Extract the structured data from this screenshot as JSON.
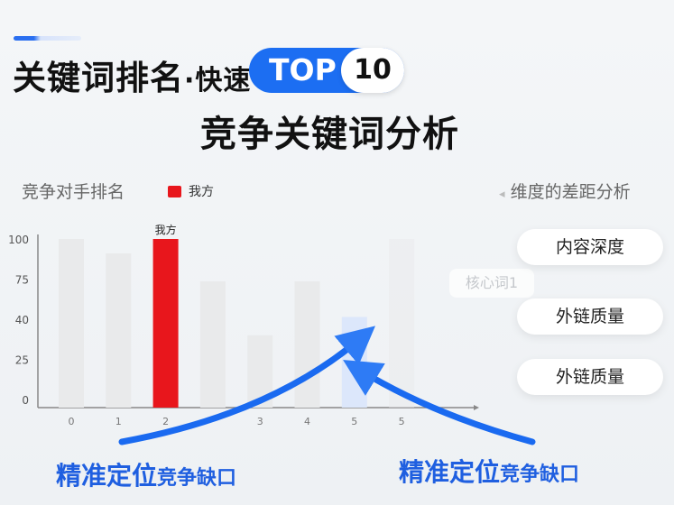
{
  "header": {
    "title_main": "关键词排名",
    "title_sep": "·",
    "title_fast": "快速",
    "badge_top": "TOP",
    "badge_num": "10",
    "subtitle": "竞争关键词分析"
  },
  "chart_data": {
    "type": "bar",
    "title": "竞争对手排名",
    "legend": [
      {
        "name": "我方",
        "color": "#e8161c"
      }
    ],
    "legend_placement": "top",
    "categories": [
      "0",
      "1",
      "2",
      "",
      "3",
      "4",
      "5",
      "5"
    ],
    "values": [
      100,
      91,
      100,
      73,
      34,
      73,
      42,
      100
    ],
    "highlight_index": 2,
    "highlight_label": "我方",
    "gap_index": 6,
    "y_ticks": [
      "100",
      "75",
      "40",
      "25",
      "0"
    ],
    "colors": {
      "bar": "#e9eaeb",
      "ours": "#e8161c",
      "gap": "#dce7fb"
    },
    "grid": false
  },
  "right_panel": {
    "title": "维度的差距分析",
    "arrow": "◂",
    "items": [
      "内容深度",
      "外链质量",
      "外链质量"
    ],
    "ghost_label": "核心词1"
  },
  "captions": [
    {
      "big": "精准定位",
      "small": "竞争缺口"
    },
    {
      "big": "精准定位",
      "small": "竞争缺口"
    }
  ],
  "colors": {
    "accent": "#1c6ef2",
    "ours": "#e8161c",
    "caption": "#1f5fe0"
  }
}
